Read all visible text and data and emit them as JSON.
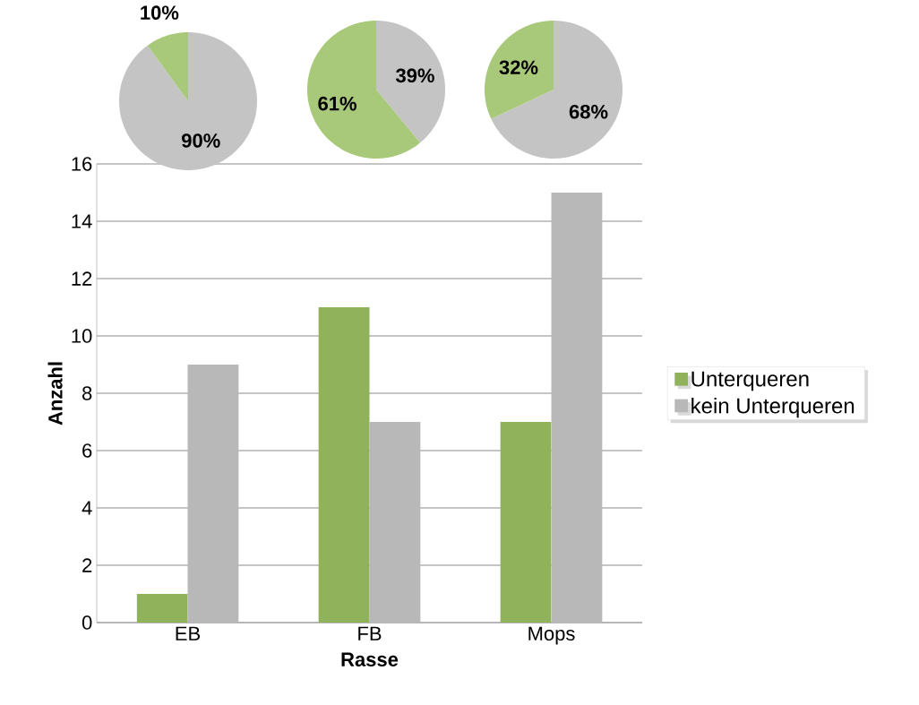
{
  "chart_data": [
    {
      "type": "bar",
      "categories": [
        "EB",
        "FB",
        "Mops"
      ],
      "xlabel": "Rasse",
      "ylabel": "Anzahl",
      "ylim": [
        0,
        16
      ],
      "yticks": [
        0,
        2,
        4,
        6,
        8,
        10,
        12,
        14,
        16
      ],
      "grid": "y",
      "legend": "right",
      "series": [
        {
          "name": "Unterqueren",
          "color": "#8fb25a",
          "values": [
            1,
            11,
            7
          ]
        },
        {
          "name": "kein Unterqueren",
          "color": "#b8b8b8",
          "values": [
            9,
            7,
            15
          ]
        }
      ]
    },
    {
      "type": "pie",
      "categories": [
        null,
        null
      ],
      "values": [
        90,
        10
      ],
      "colors": [
        "#c4c4c4",
        "#a9c97a"
      ],
      "value_labels": [
        "90%",
        "10%"
      ]
    },
    {
      "type": "pie",
      "categories": [
        null,
        null
      ],
      "values": [
        39,
        61
      ],
      "colors": [
        "#c4c4c4",
        "#a9c97a"
      ],
      "value_labels": [
        "39%",
        "61%"
      ]
    },
    {
      "type": "pie",
      "categories": [
        null,
        null
      ],
      "values": [
        68,
        32
      ],
      "colors": [
        "#c4c4c4",
        "#a9c97a"
      ],
      "value_labels": [
        "68%",
        "32%"
      ]
    }
  ]
}
